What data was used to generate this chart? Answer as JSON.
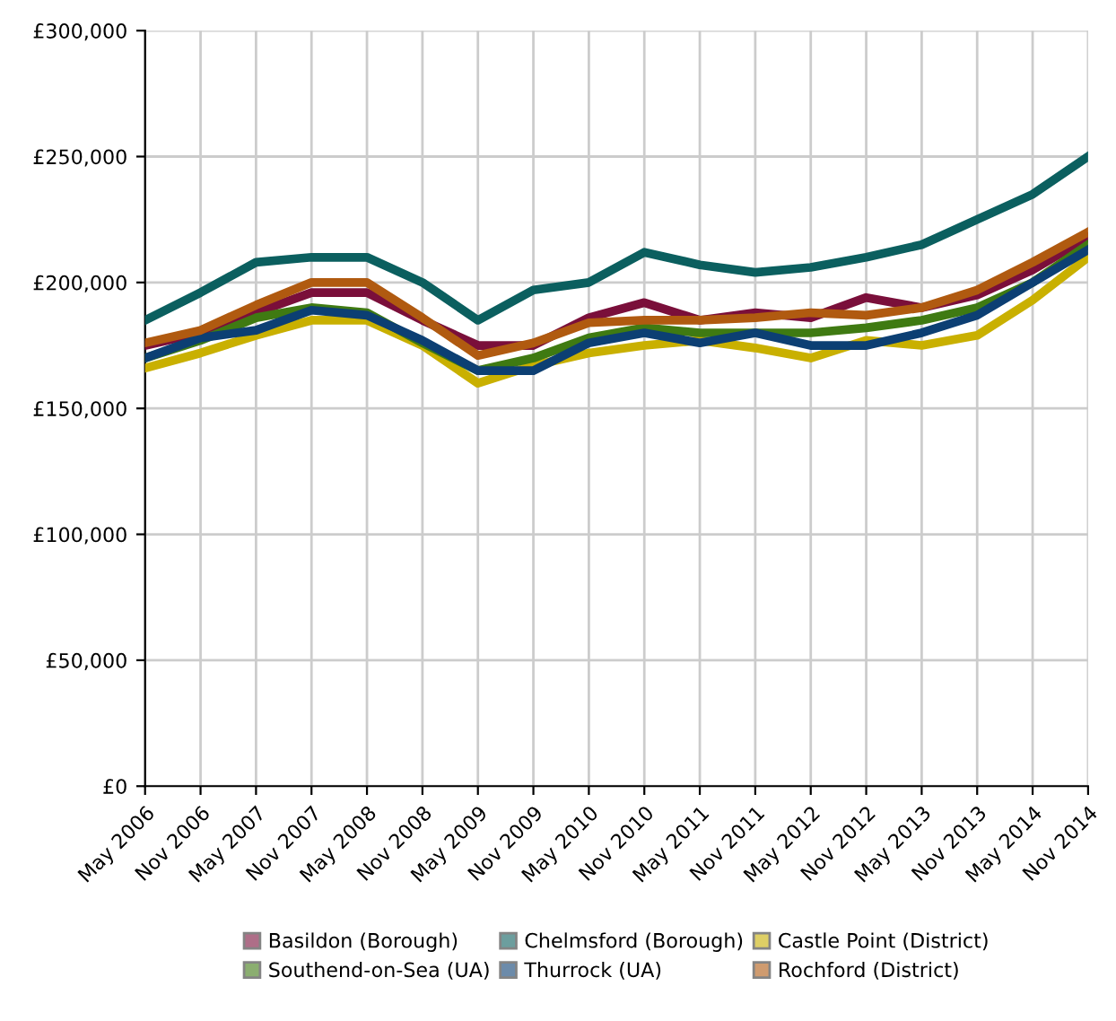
{
  "chart_data": {
    "type": "line",
    "categories": [
      "May 2006",
      "Nov 2006",
      "May 2007",
      "Nov 2007",
      "May 2008",
      "Nov 2008",
      "May 2009",
      "Nov 2009",
      "May 2010",
      "Nov 2010",
      "May 2011",
      "Nov 2011",
      "May 2012",
      "Nov 2012",
      "May 2013",
      "Nov 2013",
      "May 2014",
      "Nov 2014"
    ],
    "series": [
      {
        "name": "Basildon (Borough)",
        "color": "#7a0f3a",
        "values": [
          175000,
          180000,
          188000,
          196000,
          196000,
          185000,
          175000,
          175000,
          186000,
          192000,
          185000,
          188000,
          186000,
          194000,
          190000,
          195000,
          205000,
          218000
        ]
      },
      {
        "name": "Chelmsford (Borough)",
        "color": "#0b5f5f",
        "values": [
          185000,
          196000,
          208000,
          210000,
          210000,
          200000,
          185000,
          197000,
          200000,
          212000,
          207000,
          204000,
          206000,
          210000,
          215000,
          225000,
          235000,
          250000
        ]
      },
      {
        "name": "Castle Point (District)",
        "color": "#c9b000",
        "values": [
          166000,
          172000,
          179000,
          185000,
          185000,
          175000,
          160000,
          167000,
          172000,
          175000,
          177000,
          174000,
          170000,
          177000,
          175000,
          179000,
          193000,
          210000
        ]
      },
      {
        "name": "Southend-on-Sea (UA)",
        "color": "#3f7a12",
        "values": [
          170000,
          177000,
          186000,
          190000,
          188000,
          176000,
          165000,
          170000,
          178000,
          182000,
          180000,
          180000,
          180000,
          182000,
          185000,
          190000,
          200000,
          215000
        ]
      },
      {
        "name": "Thurrock (UA)",
        "color": "#0c3f73",
        "values": [
          170000,
          178000,
          181000,
          189000,
          187000,
          177000,
          165000,
          165000,
          176000,
          180000,
          176000,
          180000,
          175000,
          175000,
          180000,
          187000,
          200000,
          213000
        ]
      },
      {
        "name": "Rochford (District)",
        "color": "#b05a10",
        "values": [
          176000,
          181000,
          191000,
          200000,
          200000,
          186000,
          171000,
          176000,
          184000,
          185000,
          185000,
          186000,
          188000,
          187000,
          190000,
          197000,
          208000,
          220000
        ]
      }
    ],
    "ylim": [
      0,
      300000
    ],
    "yticks": [
      {
        "value": 0,
        "label": "£0"
      },
      {
        "value": 50000,
        "label": "£50,000"
      },
      {
        "value": 100000,
        "label": "£100,000"
      },
      {
        "value": 150000,
        "label": "£150,000"
      },
      {
        "value": 200000,
        "label": "£200,000"
      },
      {
        "value": 250000,
        "label": "£250,000"
      },
      {
        "value": 300000,
        "label": "£300,000"
      }
    ],
    "grid": true,
    "legend": "bottom",
    "line_style": "solid",
    "marker": "none"
  }
}
